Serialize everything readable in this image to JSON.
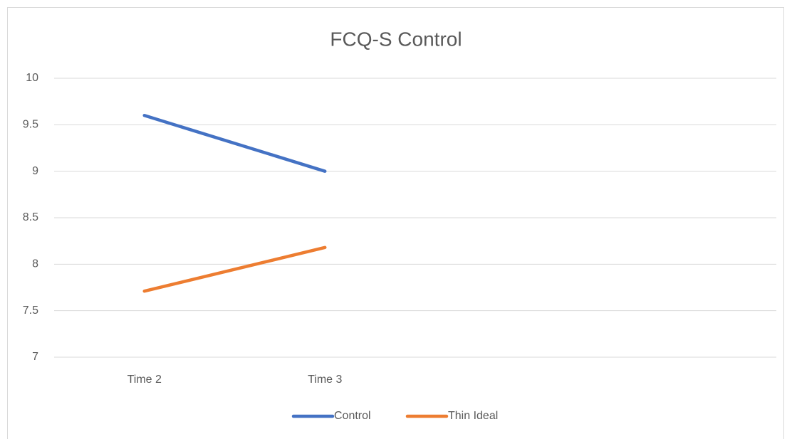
{
  "chart_data": {
    "type": "line",
    "title": "FCQ-S Control",
    "categories": [
      "Time 2",
      "Time 3",
      null,
      null
    ],
    "series": [
      {
        "name": "Control",
        "color": "#4472c4",
        "values": [
          9.6,
          9.0,
          null,
          null
        ]
      },
      {
        "name": "Thin Ideal",
        "color": "#ed7d31",
        "values": [
          7.71,
          8.18,
          null,
          null
        ]
      }
    ],
    "ylim": [
      7,
      10
    ],
    "yticks": [
      7,
      7.5,
      8,
      8.5,
      9,
      9.5,
      10
    ],
    "grid": true,
    "legend": "bottom"
  }
}
